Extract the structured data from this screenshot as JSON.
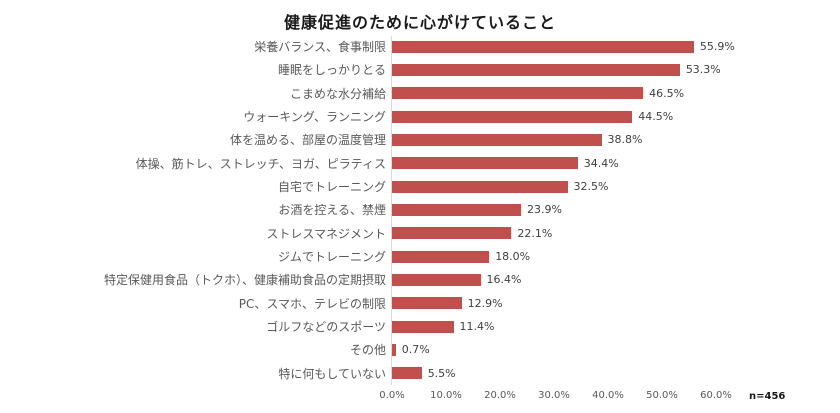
{
  "title": "健康促進のために心がけていること",
  "note": "n=456",
  "colors": {
    "bar": "#c0504d",
    "axis_line": "#d9d9d9",
    "category_label": "#595959",
    "value_label": "#3f3f3f",
    "tick_label": "#595959",
    "title": "#1a1a1a"
  },
  "chart_data": {
    "type": "bar",
    "orientation": "horizontal",
    "title": "健康促進のために心がけていること",
    "categories": [
      "栄養バランス、食事制限",
      "睡眠をしっかりとる",
      "こまめな水分補給",
      "ウォーキング、ランニング",
      "体を温める、部屋の温度管理",
      "体操、筋トレ、ストレッチ、ヨガ、ピラティス",
      "自宅でトレーニング",
      "お酒を控える、禁煙",
      "ストレスマネジメント",
      "ジムでトレーニング",
      "特定保健用食品（トクホ）、健康補助食品の定期摂取",
      "PC、スマホ、テレビの制限",
      "ゴルフなどのスポーツ",
      "その他",
      "特に何もしていない"
    ],
    "values": [
      55.9,
      53.3,
      46.5,
      44.5,
      38.8,
      34.4,
      32.5,
      23.9,
      22.1,
      18.0,
      16.4,
      12.9,
      11.4,
      0.7,
      5.5
    ],
    "labels": [
      "55.9%",
      "53.3%",
      "46.5%",
      "44.5%",
      "38.8%",
      "34.4%",
      "32.5%",
      "23.9%",
      "22.1%",
      "18.0%",
      "16.4%",
      "12.9%",
      "11.4%",
      "0.7%",
      "5.5%"
    ],
    "xlabel": "",
    "ylabel": "",
    "xlim": [
      0,
      60
    ],
    "xticks": [
      0,
      10,
      20,
      30,
      40,
      50,
      60
    ],
    "xtick_labels": [
      "0.0%",
      "10.0%",
      "20.0%",
      "30.0%",
      "40.0%",
      "50.0%",
      "60.0%"
    ],
    "grid": false,
    "legend": false,
    "sample_size": "n=456"
  }
}
